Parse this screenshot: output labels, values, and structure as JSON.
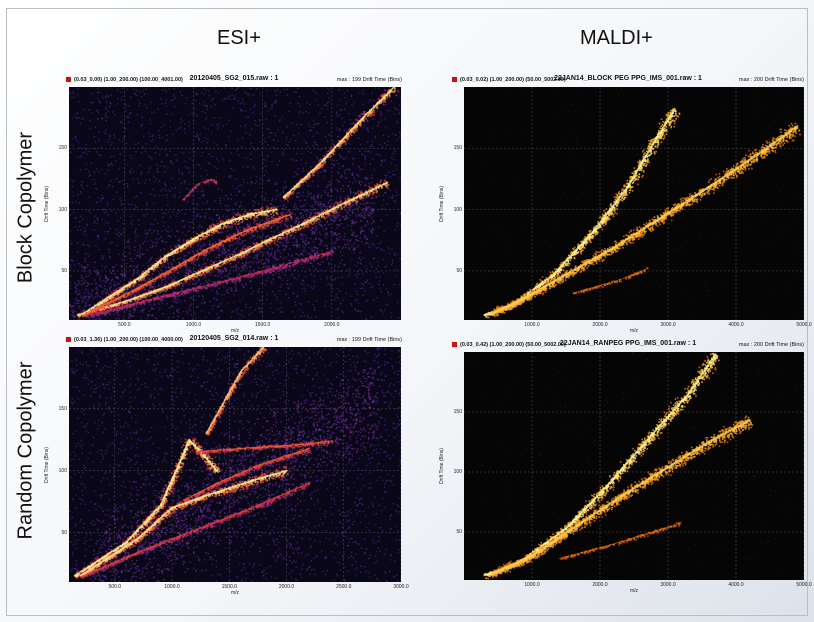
{
  "column_headers": [
    "ESI+",
    "MALDI+"
  ],
  "row_headers": [
    "Block Copolymer",
    "Random Copolymer"
  ],
  "colors": {
    "esi_background": "#0a0718",
    "maldi_background": "#050505",
    "accent_red": "#c11111"
  },
  "chart_data": [
    {
      "type": "heatmap",
      "id": "esi_block",
      "header_left": "(0.03_0.00) (1.00_200.00) (100.00_4001.00)",
      "title": "20120405_SG2_015.raw : 1",
      "header_right": "max : 199 Drift Time (Bins)",
      "xlabel": "m/z",
      "ylabel": "Drift Time (Bins)",
      "xlim": [
        100,
        2500
      ],
      "ylim": [
        10,
        200
      ],
      "xticks": [
        500,
        1000,
        1500,
        2000
      ],
      "xtick_labels": [
        "500.0",
        "1000.0",
        "1500.0",
        "2000.0"
      ],
      "yticks": [
        50,
        100,
        150
      ],
      "ytick_labels": [
        "50",
        "100",
        "150"
      ],
      "grid": true,
      "colormap": "purple-red-yellow",
      "series": [
        {
          "points": [
            [
              160,
              14
            ],
            [
              500,
              25
            ],
            [
              800,
              37
            ],
            [
              1000,
              47
            ],
            [
              1300,
              62
            ],
            [
              1500,
              73
            ],
            [
              1800,
              89
            ],
            [
              2100,
              106
            ],
            [
              2400,
              122
            ]
          ],
          "width": 0.7,
          "intensity": 0.95
        },
        {
          "points": [
            [
              200,
              15
            ],
            [
              600,
              44
            ],
            [
              800,
              62
            ],
            [
              1000,
              76
            ],
            [
              1200,
              88
            ],
            [
              1400,
              96
            ],
            [
              1600,
              100
            ]
          ],
          "width": 0.8,
          "intensity": 1.0
        },
        {
          "points": [
            [
              200,
              14
            ],
            [
              600,
              36
            ],
            [
              900,
              55
            ],
            [
              1100,
              68
            ],
            [
              1400,
              84
            ],
            [
              1700,
              96
            ]
          ],
          "width": 0.6,
          "intensity": 0.75
        },
        {
          "points": [
            [
              250,
              14
            ],
            [
              800,
              30
            ],
            [
              1200,
              41
            ],
            [
              1600,
              53
            ],
            [
              2000,
              66
            ]
          ],
          "width": 0.5,
          "intensity": 0.5
        },
        {
          "points": [
            [
              1650,
              110
            ],
            [
              1900,
              136
            ],
            [
              2200,
              172
            ],
            [
              2450,
              200
            ]
          ],
          "width": 0.7,
          "intensity": 0.95
        },
        {
          "points": [
            [
              920,
              108
            ],
            [
              1030,
              121
            ],
            [
              1130,
              125
            ],
            [
              1170,
              122
            ]
          ],
          "width": 0.25,
          "intensity": 0.6
        }
      ],
      "halo": [
        {
          "x": [
            100,
            2300
          ],
          "y": [
            20,
            105
          ],
          "intensity": 0.35
        }
      ]
    },
    {
      "type": "heatmap",
      "id": "maldi_block",
      "header_left": "(0.03_0.02) (1.00_200.00) (50.00_5002.00)",
      "title": "22JAN14_BLOCK PEG PPG_IMS_001.raw : 1",
      "header_right": "max : 200 Drift Time (Bins)",
      "xlabel": "m/z",
      "ylabel": "Drift Time (Bins)",
      "xlim": [
        0,
        5000
      ],
      "ylim": [
        10,
        200
      ],
      "xticks": [
        1000,
        2000,
        3000,
        4000,
        5000
      ],
      "xtick_labels": [
        "1000.0",
        "2000.0",
        "3000.0",
        "4000.0",
        "5000.0"
      ],
      "yticks": [
        50,
        100,
        150
      ],
      "ytick_labels": [
        "50",
        "100",
        "150"
      ],
      "grid": true,
      "colormap": "black-orange-yellow",
      "series": [
        {
          "points": [
            [
              300,
              14
            ],
            [
              700,
              22
            ],
            [
              1300,
              46
            ],
            [
              1900,
              82
            ],
            [
              2400,
              118
            ],
            [
              2850,
              160
            ],
            [
              3100,
              182
            ]
          ],
          "width": 0.9,
          "intensity": 1.0
        },
        {
          "points": [
            [
              400,
              15
            ],
            [
              900,
              28
            ],
            [
              1500,
              47
            ],
            [
              2200,
              69
            ],
            [
              3000,
              97
            ],
            [
              3700,
              122
            ],
            [
              4400,
              148
            ],
            [
              4900,
              168
            ]
          ],
          "width": 1.0,
          "intensity": 0.8
        },
        {
          "points": [
            [
              1600,
              32
            ],
            [
              2300,
              43
            ],
            [
              2700,
              52
            ]
          ],
          "width": 0.3,
          "intensity": 0.45
        }
      ]
    },
    {
      "type": "heatmap",
      "id": "esi_random",
      "header_left": "(0.03_1.36) (1.00_200.00) (100.00_4000.00)",
      "title": "20120405_SG2_014.raw : 1",
      "header_right": "max : 199 Drift Time (Bins)",
      "xlabel": "m/z",
      "ylabel": "Drift Time (Bins)",
      "xlim": [
        100,
        3000
      ],
      "ylim": [
        10,
        200
      ],
      "xticks": [
        500,
        1000,
        1500,
        2000,
        2500,
        3000
      ],
      "xtick_labels": [
        "500.0",
        "1000.0",
        "1500.0",
        "2000.0",
        "2500.0",
        "3000.0"
      ],
      "yticks": [
        50,
        100,
        150
      ],
      "ytick_labels": [
        "50",
        "100",
        "150"
      ],
      "grid": true,
      "colormap": "purple-red-yellow",
      "series": [
        {
          "points": [
            [
              150,
              15
            ],
            [
              600,
              42
            ],
            [
              900,
              72
            ],
            [
              1050,
              103
            ],
            [
              1150,
              125
            ],
            [
              1280,
              112
            ],
            [
              1400,
              99
            ]
          ],
          "width": 0.8,
          "intensity": 1.0
        },
        {
          "points": [
            [
              200,
              15
            ],
            [
              700,
              45
            ],
            [
              1000,
              70
            ],
            [
              1300,
              80
            ],
            [
              1700,
              92
            ],
            [
              2000,
              100
            ]
          ],
          "width": 0.8,
          "intensity": 0.95
        },
        {
          "points": [
            [
              1300,
              130
            ],
            [
              1600,
              180
            ],
            [
              1800,
              200
            ]
          ],
          "width": 0.7,
          "intensity": 0.9
        },
        {
          "points": [
            [
              1200,
              115
            ],
            [
              1600,
              118
            ],
            [
              2100,
              121
            ],
            [
              2400,
              124
            ]
          ],
          "width": 0.5,
          "intensity": 0.7
        },
        {
          "points": [
            [
              200,
              14
            ],
            [
              700,
              34
            ],
            [
              1200,
              52
            ],
            [
              1700,
              70
            ],
            [
              2200,
              90
            ]
          ],
          "width": 0.5,
          "intensity": 0.6
        },
        {
          "points": [
            [
              1100,
              76
            ],
            [
              1400,
              90
            ],
            [
              1800,
              106
            ],
            [
              2200,
              118
            ]
          ],
          "width": 0.5,
          "intensity": 0.7
        }
      ],
      "halo": [
        {
          "x": [
            300,
            2800
          ],
          "y": [
            20,
            160
          ],
          "intensity": 0.4
        }
      ]
    },
    {
      "type": "heatmap",
      "id": "maldi_random",
      "header_left": "(0.03_0.42) (1.00_200.00) (50.00_5002.00)",
      "title": "22JAN14_RANPEG PPG_IMS_001.raw : 1",
      "header_right": "max : 200 Drift Time (Bins)",
      "xlabel": "m/z",
      "ylabel": "Drift Time (Bins)",
      "xlim": [
        0,
        5000
      ],
      "ylim": [
        10,
        200
      ],
      "xticks": [
        1000,
        2000,
        3000,
        4000,
        5000
      ],
      "xtick_labels": [
        "1000.0",
        "2000.0",
        "3000.0",
        "4000.0",
        "5000.0"
      ],
      "yticks": [
        50,
        100,
        150
      ],
      "ytick_labels": [
        "50",
        "100",
        "150"
      ],
      "grid": true,
      "colormap": "black-orange-yellow",
      "series": [
        {
          "points": [
            [
              300,
              14
            ],
            [
              800,
              24
            ],
            [
              1500,
              53
            ],
            [
              2100,
              88
            ],
            [
              2700,
              127
            ],
            [
              3300,
              165
            ],
            [
              3700,
              198
            ]
          ],
          "width": 0.9,
          "intensity": 1.0
        },
        {
          "points": [
            [
              400,
              15
            ],
            [
              1000,
              30
            ],
            [
              1700,
              57
            ],
            [
              2400,
              83
            ],
            [
              3000,
              104
            ],
            [
              3600,
              125
            ],
            [
              4200,
              143
            ]
          ],
          "width": 1.0,
          "intensity": 0.8
        },
        {
          "points": [
            [
              1400,
              28
            ],
            [
              2200,
              40
            ],
            [
              3200,
              58
            ]
          ],
          "width": 0.3,
          "intensity": 0.45
        }
      ]
    }
  ]
}
